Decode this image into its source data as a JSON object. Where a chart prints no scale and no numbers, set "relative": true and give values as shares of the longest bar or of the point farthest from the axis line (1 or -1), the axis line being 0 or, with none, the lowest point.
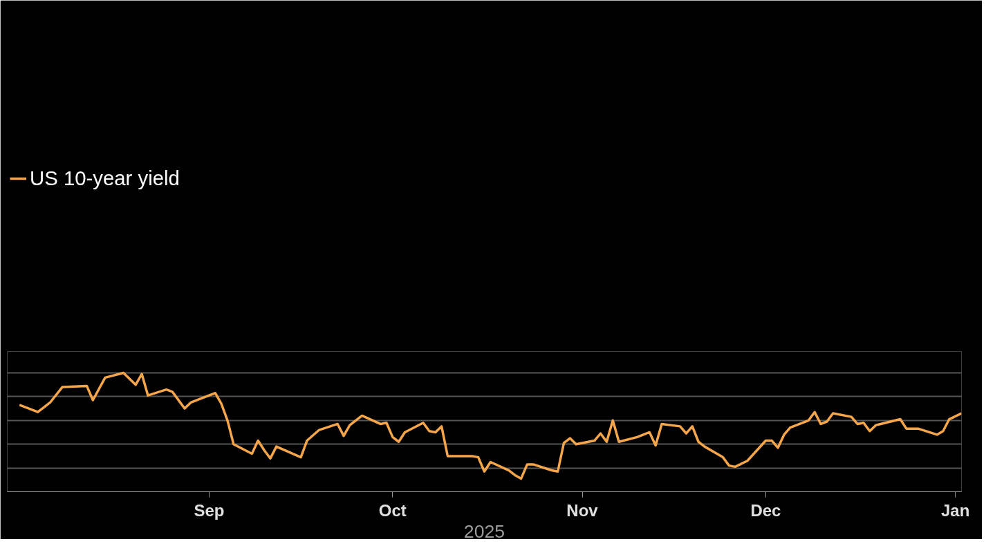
{
  "chart_data": {
    "type": "line",
    "relative": true,
    "xlabel": "2025",
    "legend": "top left",
    "grid": "y",
    "marker": "none",
    "xlim": [
      "2025-07-30",
      "2026-01-02"
    ],
    "xticks": [
      {
        "value": "2025-09-01",
        "label": "Sep"
      },
      {
        "value": "2025-10-01",
        "label": "Oct"
      },
      {
        "value": "2025-11-01",
        "label": "Nov"
      },
      {
        "value": "2025-12-01",
        "label": "Dec"
      },
      {
        "value": "2026-01-01",
        "label": "Jan"
      }
    ],
    "x": [
      "2025-08-01",
      "2025-08-04",
      "2025-08-06",
      "2025-08-08",
      "2025-08-12",
      "2025-08-13",
      "2025-08-15",
      "2025-08-18",
      "2025-08-20",
      "2025-08-21",
      "2025-08-22",
      "2025-08-25",
      "2025-08-26",
      "2025-08-28",
      "2025-08-29",
      "2025-09-02",
      "2025-09-03",
      "2025-09-04",
      "2025-09-05",
      "2025-09-08",
      "2025-09-09",
      "2025-09-10",
      "2025-09-11",
      "2025-09-12",
      "2025-09-16",
      "2025-09-17",
      "2025-09-19",
      "2025-09-22",
      "2025-09-23",
      "2025-09-24",
      "2025-09-26",
      "2025-09-29",
      "2025-09-30",
      "2025-10-01",
      "2025-10-02",
      "2025-10-03",
      "2025-10-06",
      "2025-10-07",
      "2025-10-08",
      "2025-10-09",
      "2025-10-10",
      "2025-10-14",
      "2025-10-15",
      "2025-10-16",
      "2025-10-17",
      "2025-10-20",
      "2025-10-21",
      "2025-10-22",
      "2025-10-23",
      "2025-10-24",
      "2025-10-27",
      "2025-10-28",
      "2025-10-29",
      "2025-10-30",
      "2025-10-31",
      "2025-11-03",
      "2025-11-04",
      "2025-11-05",
      "2025-11-06",
      "2025-11-07",
      "2025-11-10",
      "2025-11-12",
      "2025-11-13",
      "2025-11-14",
      "2025-11-17",
      "2025-11-18",
      "2025-11-19",
      "2025-11-20",
      "2025-11-21",
      "2025-11-24",
      "2025-11-25",
      "2025-11-26",
      "2025-11-28",
      "2025-12-01",
      "2025-12-02",
      "2025-12-03",
      "2025-12-04",
      "2025-12-05",
      "2025-12-08",
      "2025-12-09",
      "2025-12-10",
      "2025-12-11",
      "2025-12-12",
      "2025-12-15",
      "2025-12-16",
      "2025-12-17",
      "2025-12-18",
      "2025-12-19",
      "2025-12-23",
      "2025-12-24",
      "2025-12-26",
      "2025-12-29",
      "2025-12-30",
      "2025-12-31",
      "2026-01-02"
    ],
    "series": [
      {
        "name": "US 10-year yield",
        "color": "#f5a54a",
        "values": [
          0.73,
          0.67,
          0.75,
          0.88,
          0.89,
          0.77,
          0.96,
          1.0,
          0.9,
          0.99,
          0.81,
          0.86,
          0.84,
          0.7,
          0.75,
          0.83,
          0.74,
          0.6,
          0.4,
          0.32,
          0.43,
          0.35,
          0.28,
          0.38,
          0.29,
          0.43,
          0.52,
          0.57,
          0.47,
          0.56,
          0.64,
          0.57,
          0.58,
          0.46,
          0.42,
          0.5,
          0.58,
          0.51,
          0.5,
          0.55,
          0.3,
          0.3,
          0.29,
          0.17,
          0.25,
          0.18,
          0.14,
          0.11,
          0.23,
          0.23,
          0.18,
          0.17,
          0.41,
          0.45,
          0.4,
          0.43,
          0.49,
          0.42,
          0.6,
          0.42,
          0.46,
          0.5,
          0.39,
          0.57,
          0.55,
          0.49,
          0.55,
          0.42,
          0.38,
          0.29,
          0.22,
          0.21,
          0.26,
          0.43,
          0.43,
          0.37,
          0.48,
          0.54,
          0.6,
          0.67,
          0.57,
          0.59,
          0.66,
          0.63,
          0.57,
          0.58,
          0.51,
          0.56,
          0.61,
          0.53,
          0.53,
          0.48,
          0.51,
          0.61,
          0.66
        ]
      }
    ]
  }
}
